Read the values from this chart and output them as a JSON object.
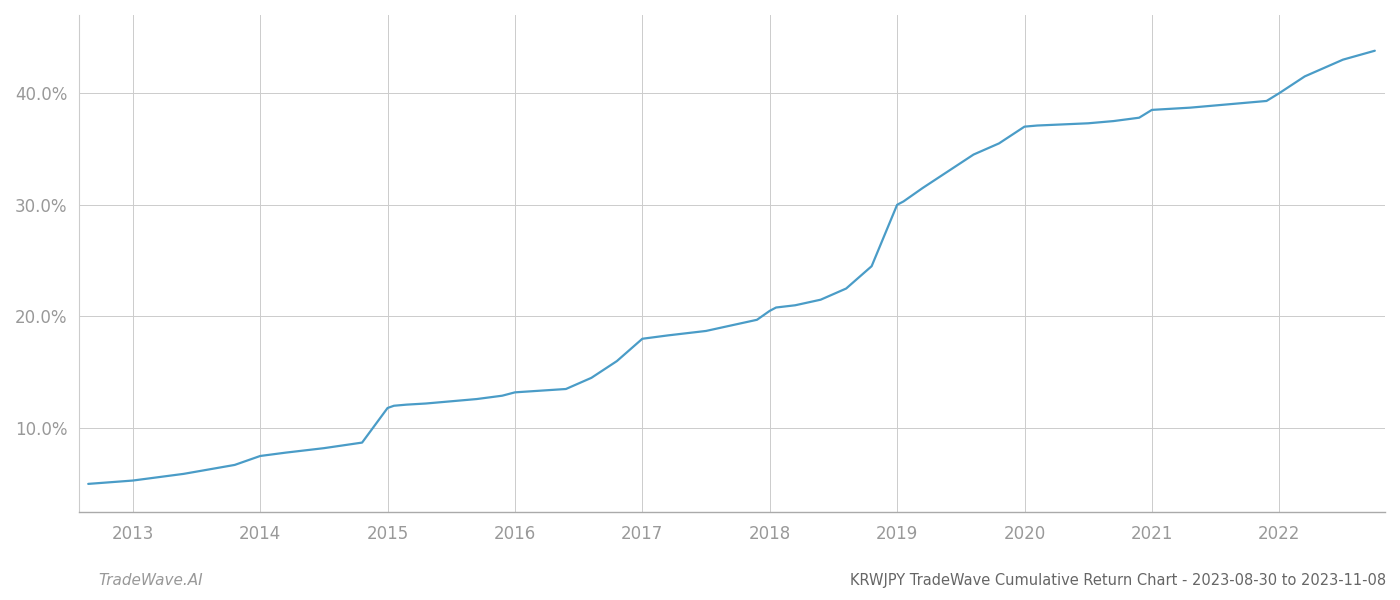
{
  "title": "KRWJPY TradeWave Cumulative Return Chart - 2023-08-30 to 2023-11-08",
  "watermark": "TradeWave.AI",
  "line_color": "#4a9cc7",
  "background_color": "#ffffff",
  "grid_color": "#cccccc",
  "x_years": [
    2013,
    2014,
    2015,
    2016,
    2017,
    2018,
    2019,
    2020,
    2021,
    2022
  ],
  "data_x": [
    2012.65,
    2013.0,
    2013.2,
    2013.4,
    2013.6,
    2013.8,
    2014.0,
    2014.2,
    2014.5,
    2014.8,
    2015.0,
    2015.05,
    2015.15,
    2015.3,
    2015.5,
    2015.7,
    2015.9,
    2016.0,
    2016.2,
    2016.4,
    2016.6,
    2016.8,
    2017.0,
    2017.2,
    2017.5,
    2017.7,
    2017.9,
    2018.0,
    2018.05,
    2018.2,
    2018.4,
    2018.6,
    2018.8,
    2019.0,
    2019.05,
    2019.2,
    2019.4,
    2019.6,
    2019.8,
    2020.0,
    2020.1,
    2020.3,
    2020.5,
    2020.7,
    2020.9,
    2021.0,
    2021.3,
    2021.6,
    2021.9,
    2022.0,
    2022.2,
    2022.5,
    2022.75
  ],
  "data_y": [
    5.0,
    5.3,
    5.6,
    5.9,
    6.3,
    6.7,
    7.5,
    7.8,
    8.2,
    8.7,
    11.8,
    12.0,
    12.1,
    12.2,
    12.4,
    12.6,
    12.9,
    13.2,
    13.35,
    13.5,
    14.5,
    16.0,
    18.0,
    18.3,
    18.7,
    19.2,
    19.7,
    20.5,
    20.8,
    21.0,
    21.5,
    22.5,
    24.5,
    30.0,
    30.3,
    31.5,
    33.0,
    34.5,
    35.5,
    37.0,
    37.1,
    37.2,
    37.3,
    37.5,
    37.8,
    38.5,
    38.7,
    39.0,
    39.3,
    40.0,
    41.5,
    43.0,
    43.8
  ],
  "yticks": [
    10.0,
    20.0,
    30.0,
    40.0
  ],
  "ylim": [
    2.5,
    47.0
  ],
  "xlim": [
    2012.58,
    2022.83
  ],
  "tick_color": "#999999",
  "title_color": "#666666",
  "watermark_color": "#999999",
  "line_width": 1.6,
  "title_fontsize": 10.5,
  "tick_fontsize": 12,
  "watermark_fontsize": 11
}
